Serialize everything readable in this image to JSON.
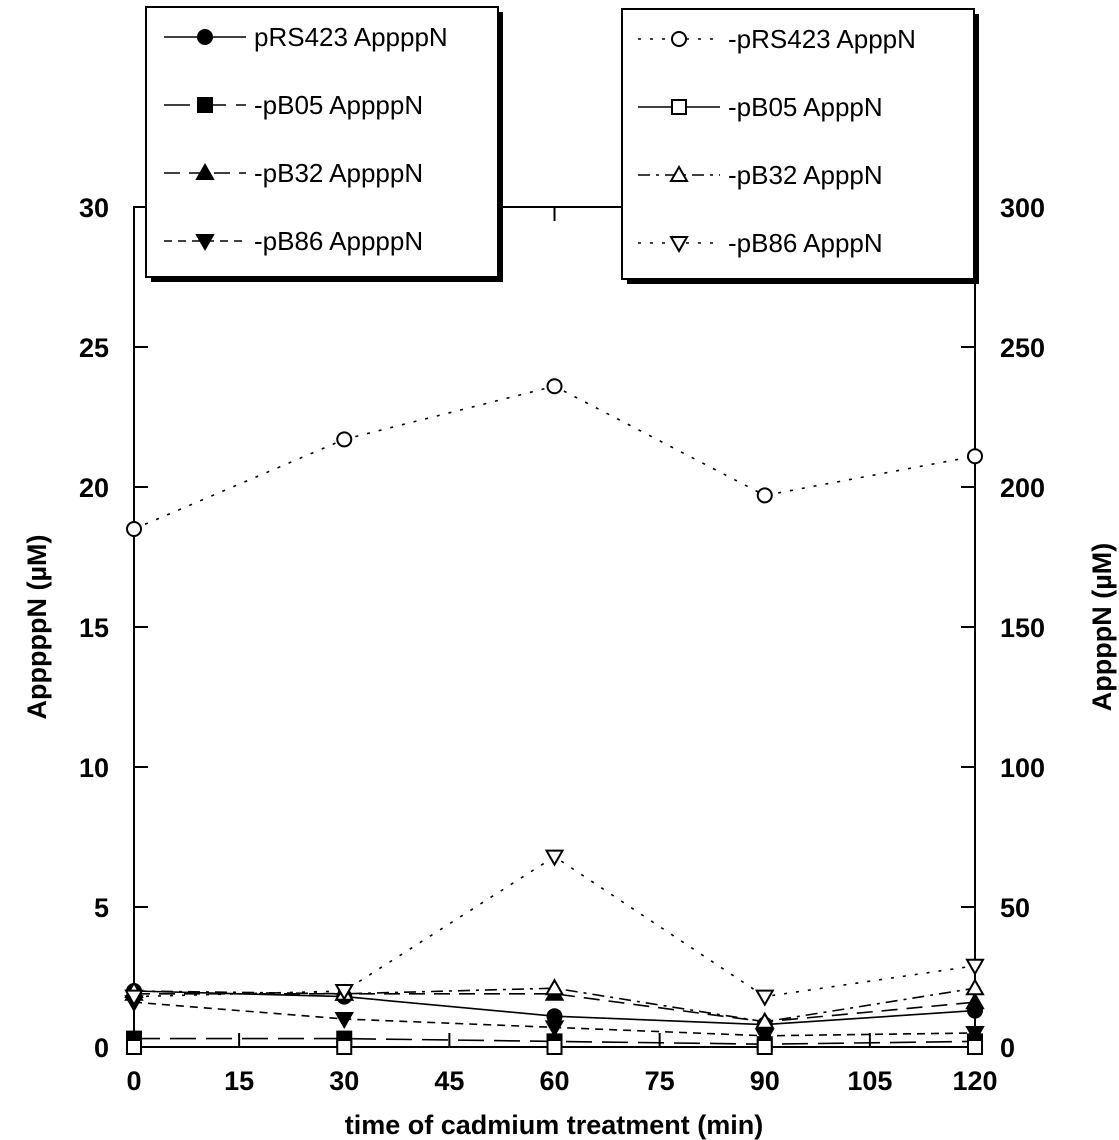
{
  "chart_data": {
    "type": "line",
    "xlabel": "time of cadmium treatment (min)",
    "x": [
      0,
      30,
      60,
      90,
      120
    ],
    "xticks": [
      0,
      15,
      30,
      45,
      60,
      75,
      90,
      105,
      120
    ],
    "xlim": [
      0,
      120
    ],
    "left_axis": {
      "label": "ApppppN (µM)",
      "ylim": [
        0,
        30
      ],
      "ticks": [
        0,
        5,
        10,
        15,
        20,
        25,
        30
      ]
    },
    "right_axis": {
      "label": "AppppN (µM)",
      "ylim": [
        0,
        300
      ],
      "ticks": [
        0,
        50,
        100,
        150,
        200,
        250,
        300
      ]
    },
    "legend_left": {
      "placement": "top-left",
      "entries": [
        "pRS423 AppppN",
        "-pB05 AppppN",
        "-pB32 AppppN",
        "-pB86 AppppN"
      ]
    },
    "legend_right": {
      "placement": "top-right",
      "entries": [
        "-pRS423 ApppN",
        "-pB05 ApppN",
        "-pB32 ApppN",
        "-pB86 ApppN"
      ]
    },
    "series": [
      {
        "name": "pRS423 AppppN",
        "axis": "left",
        "marker": "circle-filled",
        "dash": "solid",
        "values": [
          2.0,
          1.8,
          1.1,
          0.8,
          1.3
        ]
      },
      {
        "name": "pB05 AppppN",
        "axis": "left",
        "marker": "square-filled",
        "dash": "long-dash",
        "values": [
          0.3,
          0.3,
          0.2,
          0.1,
          0.2
        ]
      },
      {
        "name": "pB32 AppppN",
        "axis": "left",
        "marker": "triangle-up-filled",
        "dash": "dash",
        "values": [
          1.9,
          1.9,
          1.9,
          0.9,
          1.6
        ]
      },
      {
        "name": "pB86 AppppN",
        "axis": "left",
        "marker": "triangle-down-filled",
        "dash": "short-dash",
        "values": [
          1.6,
          1.0,
          0.7,
          0.4,
          0.5
        ]
      },
      {
        "name": "pRS423 ApppN",
        "axis": "right",
        "marker": "circle-open",
        "dash": "dot",
        "values": [
          185,
          217,
          236,
          197,
          211
        ]
      },
      {
        "name": "pB05 ApppN",
        "axis": "right",
        "marker": "square-open",
        "dash": "solid",
        "values": [
          0,
          0,
          0,
          0,
          0
        ]
      },
      {
        "name": "pB32 ApppN",
        "axis": "right",
        "marker": "triangle-up-open",
        "dash": "dash-dot",
        "values": [
          20,
          19,
          21,
          9,
          21
        ]
      },
      {
        "name": "pB86 ApppN",
        "axis": "right",
        "marker": "triangle-down-open",
        "dash": "dot",
        "values": [
          18,
          20,
          68,
          18,
          29
        ]
      }
    ]
  }
}
